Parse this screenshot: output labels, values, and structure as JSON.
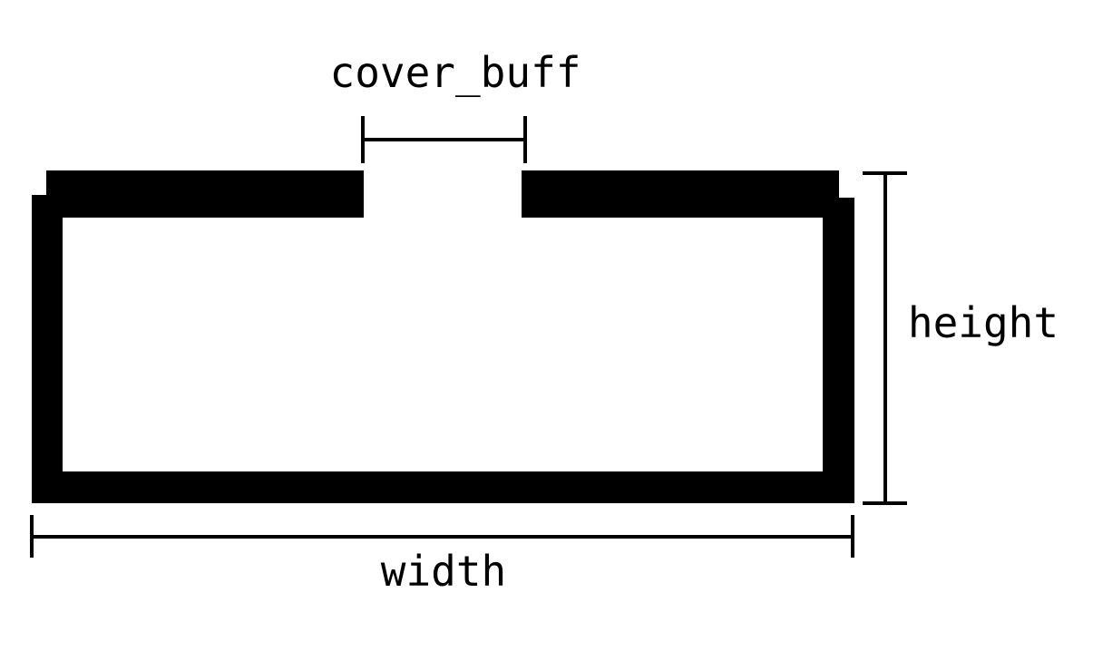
{
  "labels": {
    "cover_buff": "cover_buff",
    "height": "height",
    "width": "width"
  },
  "colors": {
    "stroke": "#000000",
    "background": "#ffffff"
  }
}
